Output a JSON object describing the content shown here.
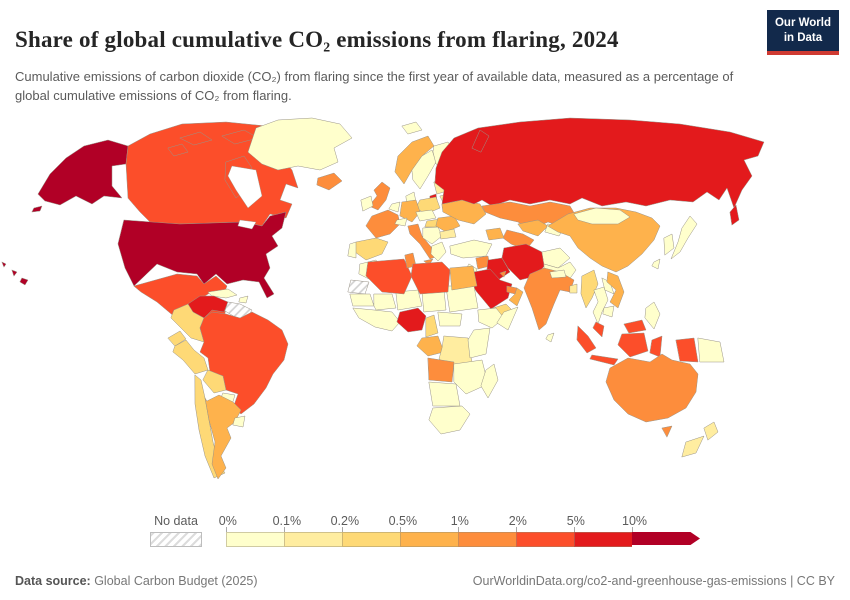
{
  "header": {
    "title": "Share of global cumulative CO₂ emissions from flaring, 2024",
    "subtitle": "Cumulative emissions of carbon dioxide (CO₂) from flaring since the first year of available data, measured as a percentage of global cumulative emissions of CO₂ from flaring."
  },
  "logo": {
    "line1": "Our World",
    "line2": "in Data",
    "bg_color": "#12294B",
    "accent_color": "#CF3A32"
  },
  "legend": {
    "no_data_label": "No data",
    "tick_labels": [
      "0%",
      "0.1%",
      "0.2%",
      "0.5%",
      "1%",
      "2%",
      "5%",
      "10%"
    ]
  },
  "footer": {
    "source_label": "Data source:",
    "source_text": " Global Carbon Budget (2025)",
    "right_text": "OurWorldinData.org/co2-and-greenhouse-gas-emissions | CC BY"
  },
  "chart_data": {
    "type": "heatmap",
    "subtype": "choropleth-world-map",
    "title": "Share of global cumulative CO₂ emissions from flaring, 2024",
    "unit": "% of global cumulative flaring CO₂ emissions",
    "legend_position": "bottom",
    "bin_labels": [
      "0%–0.1%",
      "0.1%–0.2%",
      "0.2%–0.5%",
      "0.5%–1%",
      "1%–2%",
      "2%–5%",
      "5%–10%",
      ">10%"
    ],
    "bin_colors": [
      "#ffffcc",
      "#ffeda0",
      "#fed976",
      "#feb24c",
      "#fd8d3c",
      "#fc4e2a",
      "#e31a1c",
      "#b10026"
    ],
    "no_data_style": "white-gray-hatch",
    "countries": {
      "united-states": 7,
      "canada": 5,
      "mexico": 5,
      "brazil": 5,
      "algeria": 5,
      "libya": 5,
      "indonesia": 5,
      "malaysia": 5,
      "russia": 6,
      "venezuela": 6,
      "iran": 6,
      "iraq": 6,
      "saudi-arabia": 6,
      "nigeria": 6,
      "united-kingdom": 4,
      "france": 4,
      "italy": 4,
      "iceland": 4,
      "india": 4,
      "australia": 4,
      "kazakhstan": 4,
      "turkmenistan": 4,
      "angola": 4,
      "tunisia": 4,
      "syria": 4,
      "uae": 4,
      "kuwait": 4,
      "norway": 3,
      "germany": 3,
      "ukraine": 3,
      "romania": 3,
      "egypt": 3,
      "oman": 3,
      "china": 3,
      "vietnam": 3,
      "argentina": 3,
      "gabon-congo": 3,
      "uzbekistan": 3,
      "caucasus": 3,
      "poland": 2,
      "spain": 2,
      "hungary": 2,
      "colombia": 2,
      "ecuador": 2,
      "peru": 2,
      "bolivia": 2,
      "chile": 2,
      "yemen": 2,
      "cameroon": 2,
      "myanmar": 2,
      "belarus": 1,
      "baltics": 1,
      "bulgaria": 1,
      "dr-congo": 1,
      "new-zealand": 1,
      "bangladesh": 1,
      "greenland": 0,
      "sweden": 0,
      "finland": 0,
      "ireland": 0,
      "portugal": 0,
      "denmark": 0,
      "greece": 0,
      "turkey": 0,
      "balkans": 0,
      "austria-czechia": 0,
      "switzerland": 0,
      "netherlands-belgium": 0,
      "svalbard": 0,
      "morocco": 0,
      "mauritania": 0,
      "mali": 0,
      "niger": 0,
      "chad": 0,
      "sudan": 0,
      "west-africa": 0,
      "central-african-republic": 0,
      "ethiopia": 0,
      "somalia": 0,
      "kenya-tanzania": 0,
      "zambia-zimbabwe-mozambique": 0,
      "namibia-botswana": 0,
      "south-africa": 0,
      "madagascar": 0,
      "afghanistan": 0,
      "pakistan": 0,
      "mongolia": 0,
      "japan": 0,
      "korea": 0,
      "thailand": 0,
      "laos": 0,
      "cambodia": 0,
      "philippines": 0,
      "taiwan": 0,
      "papua-new-guinea": 0,
      "sri-lanka": 0,
      "nepal": 0,
      "central-america": 0,
      "cuba": 0,
      "hispaniola": 0,
      "paraguay": 0,
      "uruguay": 0,
      "jordan-israel": 0,
      "kyrgyzstan-tajikistan": 0,
      "guyana-suriname": "no_data",
      "western-sahara": "no_data"
    }
  }
}
